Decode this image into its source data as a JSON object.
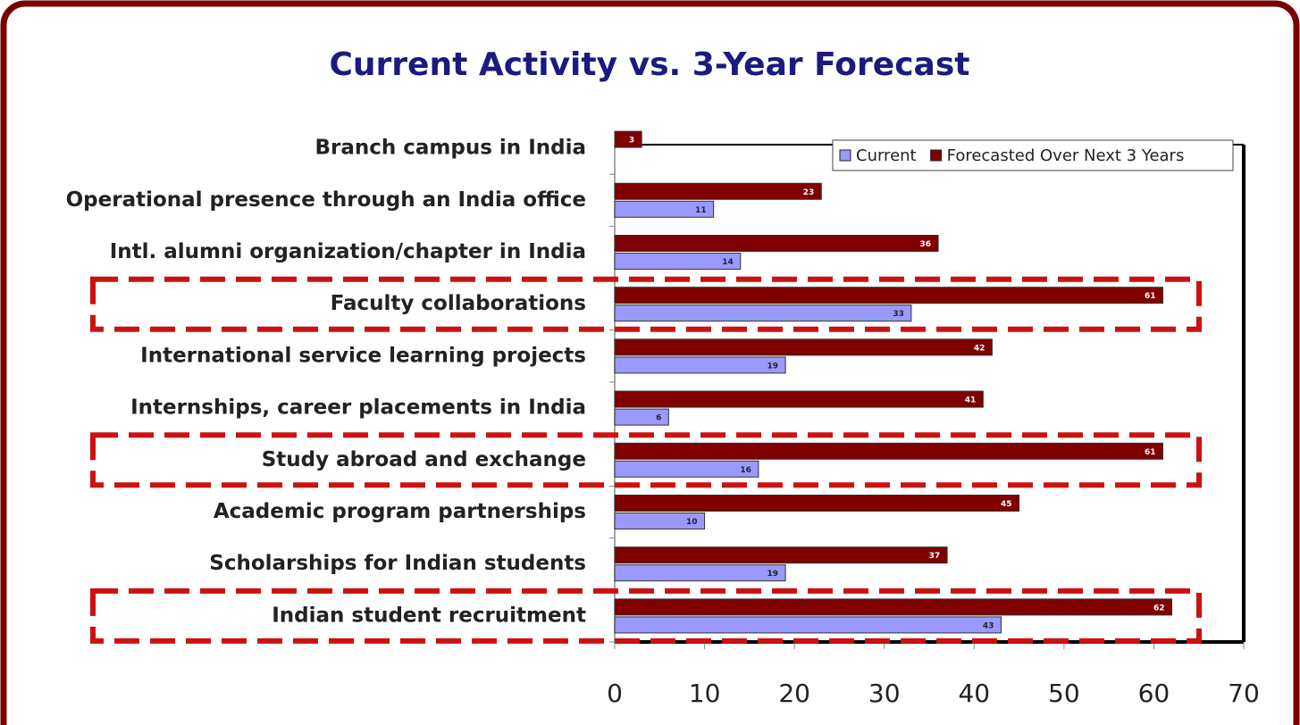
{
  "chart_data": {
    "type": "bar",
    "orientation": "horizontal",
    "title": "Current Activity vs. 3-Year Forecast",
    "categories": [
      "Branch campus in India",
      "Operational presence through an India office",
      "Intl. alumni organization/chapter in India",
      "Faculty collaborations",
      "International service learning projects",
      "Internships, career placements in India",
      "Study abroad and exchange",
      "Academic program partnerships",
      "Scholarships for Indian students",
      "Indian student recruitment"
    ],
    "series": [
      {
        "name": "Current",
        "color": "#9999ff",
        "values": [
          null,
          11,
          14,
          33,
          19,
          6,
          16,
          10,
          19,
          43
        ]
      },
      {
        "name": "Forecasted Over Next 3 Years",
        "color": "#800000",
        "values": [
          3,
          23,
          36,
          61,
          42,
          41,
          61,
          45,
          37,
          62
        ]
      }
    ],
    "xlim": [
      0,
      70
    ],
    "xticks": [
      0,
      10,
      20,
      30,
      40,
      50,
      60,
      70
    ],
    "highlight": [
      3,
      6,
      9
    ],
    "legend": "top-right",
    "grid": false
  }
}
